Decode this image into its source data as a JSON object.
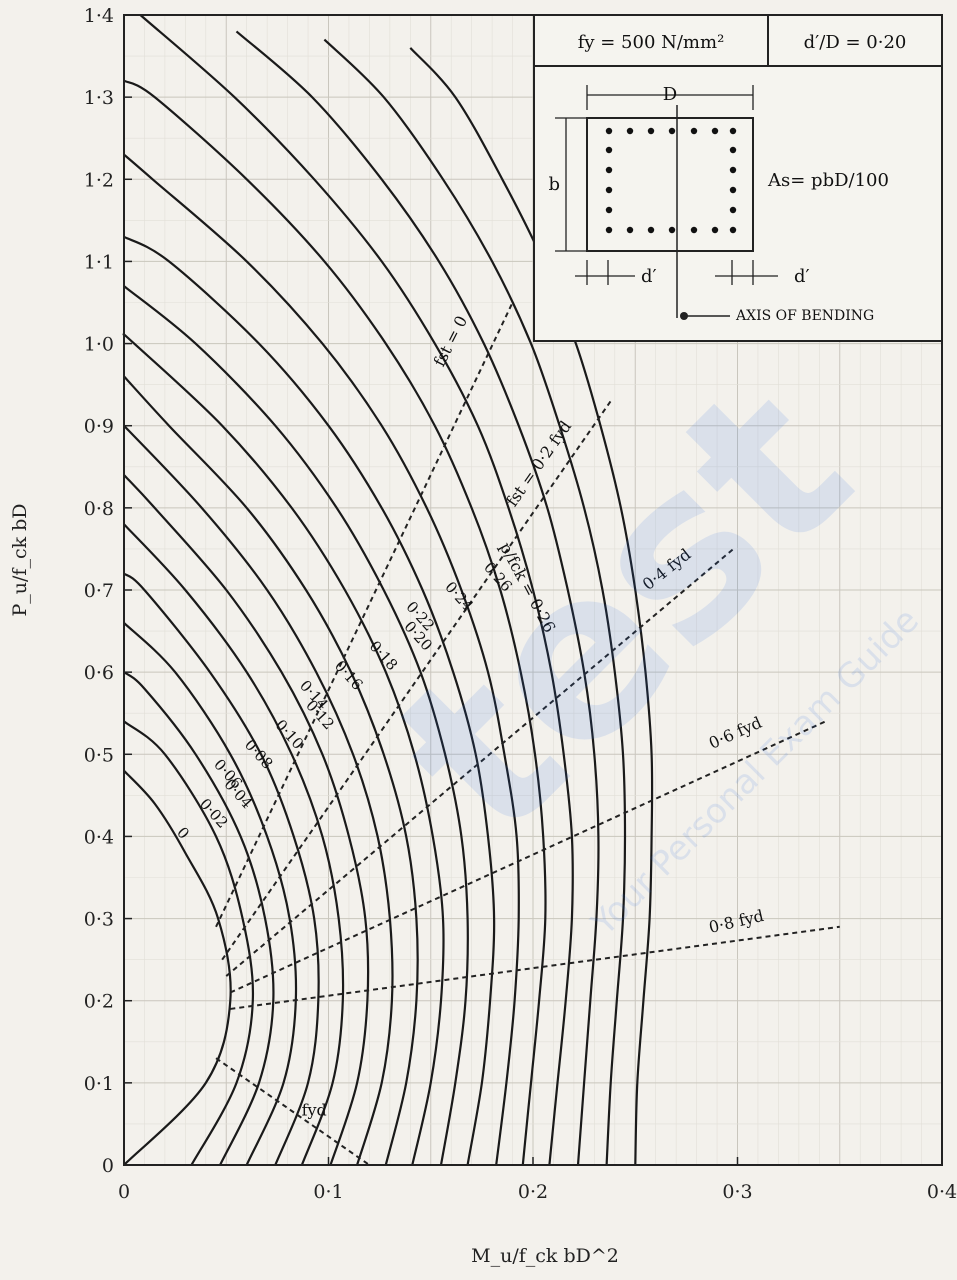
{
  "chart_data": {
    "type": "line",
    "xlabel": "M_u/f_ck bD^2",
    "ylabel": "P_u/f_ck bD",
    "xlim": [
      0,
      0.4
    ],
    "ylim": [
      0,
      1.4
    ],
    "x_ticks": [
      "0",
      "0·1",
      "0·2",
      "0·3",
      "0·4"
    ],
    "y_ticks": [
      "0",
      "0·1",
      "0·2",
      "0·3",
      "0·4",
      "0·5",
      "0·6",
      "0·7",
      "0·8",
      "0·9",
      "1·0",
      "1·1",
      "1·2",
      "1·3",
      "1·4"
    ],
    "grid": true,
    "series_param": "p/f_ck",
    "series": [
      {
        "label": "0",
        "points": [
          [
            0,
            0
          ],
          [
            0.04,
            0.1
          ],
          [
            0.052,
            0.2
          ],
          [
            0.046,
            0.3
          ],
          [
            0.03,
            0.38
          ],
          [
            0.015,
            0.44
          ],
          [
            0,
            0.48
          ]
        ]
      },
      {
        "label": "0·02",
        "points": [
          [
            0.033,
            0
          ],
          [
            0.055,
            0.1
          ],
          [
            0.063,
            0.2
          ],
          [
            0.058,
            0.3
          ],
          [
            0.045,
            0.4
          ],
          [
            0.02,
            0.5
          ],
          [
            0,
            0.54
          ]
        ]
      },
      {
        "label": "0·04",
        "points": [
          [
            0.047,
            0
          ],
          [
            0.066,
            0.1
          ],
          [
            0.073,
            0.2
          ],
          [
            0.069,
            0.3
          ],
          [
            0.057,
            0.4
          ],
          [
            0.035,
            0.5
          ],
          [
            0.01,
            0.58
          ],
          [
            0,
            0.6
          ]
        ]
      },
      {
        "label": "0·06",
        "points": [
          [
            0.06,
            0
          ],
          [
            0.078,
            0.1
          ],
          [
            0.084,
            0.2
          ],
          [
            0.081,
            0.3
          ],
          [
            0.07,
            0.4
          ],
          [
            0.052,
            0.5
          ],
          [
            0.025,
            0.6
          ],
          [
            0,
            0.66
          ]
        ]
      },
      {
        "label": "0·08",
        "points": [
          [
            0.074,
            0
          ],
          [
            0.09,
            0.1
          ],
          [
            0.095,
            0.2
          ],
          [
            0.093,
            0.3
          ],
          [
            0.083,
            0.4
          ],
          [
            0.067,
            0.5
          ],
          [
            0.042,
            0.6
          ],
          [
            0.01,
            0.7
          ],
          [
            0,
            0.72
          ]
        ]
      },
      {
        "label": "0·10",
        "points": [
          [
            0.087,
            0
          ],
          [
            0.102,
            0.1
          ],
          [
            0.107,
            0.2
          ],
          [
            0.105,
            0.3
          ],
          [
            0.097,
            0.4
          ],
          [
            0.082,
            0.5
          ],
          [
            0.06,
            0.6
          ],
          [
            0.03,
            0.7
          ],
          [
            0,
            0.78
          ]
        ]
      },
      {
        "label": "0·12",
        "points": [
          [
            0.101,
            0
          ],
          [
            0.114,
            0.1
          ],
          [
            0.119,
            0.2
          ],
          [
            0.118,
            0.3
          ],
          [
            0.11,
            0.4
          ],
          [
            0.097,
            0.5
          ],
          [
            0.077,
            0.6
          ],
          [
            0.05,
            0.7
          ],
          [
            0.015,
            0.8
          ],
          [
            0,
            0.84
          ]
        ]
      },
      {
        "label": "0·14",
        "points": [
          [
            0.114,
            0
          ],
          [
            0.126,
            0.1
          ],
          [
            0.131,
            0.2
          ],
          [
            0.13,
            0.3
          ],
          [
            0.124,
            0.4
          ],
          [
            0.112,
            0.5
          ],
          [
            0.094,
            0.6
          ],
          [
            0.07,
            0.7
          ],
          [
            0.038,
            0.8
          ],
          [
            0,
            0.9
          ]
        ]
      },
      {
        "label": "0·16",
        "points": [
          [
            0.128,
            0
          ],
          [
            0.138,
            0.1
          ],
          [
            0.143,
            0.2
          ],
          [
            0.143,
            0.3
          ],
          [
            0.138,
            0.4
          ],
          [
            0.127,
            0.5
          ],
          [
            0.111,
            0.6
          ],
          [
            0.089,
            0.7
          ],
          [
            0.06,
            0.8
          ],
          [
            0.022,
            0.9
          ],
          [
            0,
            0.96
          ]
        ]
      },
      {
        "label": "0·18",
        "points": [
          [
            0.141,
            0
          ],
          [
            0.15,
            0.1
          ],
          [
            0.155,
            0.2
          ],
          [
            0.156,
            0.3
          ],
          [
            0.151,
            0.4
          ],
          [
            0.142,
            0.5
          ],
          [
            0.128,
            0.6
          ],
          [
            0.108,
            0.7
          ],
          [
            0.082,
            0.8
          ],
          [
            0.048,
            0.9
          ],
          [
            0.005,
            1.0
          ],
          [
            0,
            1.01
          ]
        ]
      },
      {
        "label": "0·20",
        "points": [
          [
            0.155,
            0
          ],
          [
            0.162,
            0.1
          ],
          [
            0.167,
            0.2
          ],
          [
            0.168,
            0.3
          ],
          [
            0.165,
            0.4
          ],
          [
            0.157,
            0.5
          ],
          [
            0.145,
            0.6
          ],
          [
            0.127,
            0.7
          ],
          [
            0.104,
            0.8
          ],
          [
            0.074,
            0.9
          ],
          [
            0.035,
            1.0
          ],
          [
            0,
            1.07
          ]
        ]
      },
      {
        "label": "0·22",
        "points": [
          [
            0.168,
            0
          ],
          [
            0.175,
            0.1
          ],
          [
            0.179,
            0.2
          ],
          [
            0.181,
            0.3
          ],
          [
            0.178,
            0.4
          ],
          [
            0.172,
            0.5
          ],
          [
            0.161,
            0.6
          ],
          [
            0.146,
            0.7
          ],
          [
            0.126,
            0.8
          ],
          [
            0.1,
            0.9
          ],
          [
            0.066,
            1.0
          ],
          [
            0.022,
            1.1
          ],
          [
            0,
            1.13
          ]
        ]
      },
      {
        "label": "0·24",
        "points": [
          [
            0.182,
            0
          ],
          [
            0.187,
            0.1
          ],
          [
            0.191,
            0.2
          ],
          [
            0.193,
            0.3
          ],
          [
            0.192,
            0.4
          ],
          [
            0.186,
            0.5
          ],
          [
            0.178,
            0.6
          ],
          [
            0.165,
            0.7
          ],
          [
            0.148,
            0.8
          ],
          [
            0.126,
            0.9
          ],
          [
            0.097,
            1.0
          ],
          [
            0.06,
            1.1
          ],
          [
            0.014,
            1.2
          ],
          [
            0,
            1.23
          ]
        ]
      },
      {
        "label": "0·26",
        "points": [
          [
            0.195,
            0
          ],
          [
            0.199,
            0.1
          ],
          [
            0.203,
            0.2
          ],
          [
            0.206,
            0.3
          ],
          [
            0.205,
            0.4
          ],
          [
            0.201,
            0.5
          ],
          [
            0.194,
            0.6
          ],
          [
            0.184,
            0.7
          ],
          [
            0.17,
            0.8
          ],
          [
            0.152,
            0.9
          ],
          [
            0.128,
            1.0
          ],
          [
            0.098,
            1.1
          ],
          [
            0.06,
            1.2
          ],
          [
            0.015,
            1.3
          ],
          [
            0,
            1.32
          ]
        ]
      },
      {
        "label": "",
        "points": [
          [
            0.208,
            0
          ],
          [
            0.212,
            0.1
          ],
          [
            0.216,
            0.2
          ],
          [
            0.219,
            0.3
          ],
          [
            0.219,
            0.4
          ],
          [
            0.215,
            0.5
          ],
          [
            0.209,
            0.6
          ],
          [
            0.2,
            0.7
          ],
          [
            0.188,
            0.8
          ],
          [
            0.173,
            0.9
          ],
          [
            0.152,
            1.0
          ],
          [
            0.126,
            1.1
          ],
          [
            0.093,
            1.2
          ],
          [
            0.054,
            1.3
          ],
          [
            0.008,
            1.4
          ]
        ]
      },
      {
        "label": "",
        "points": [
          [
            0.222,
            0
          ],
          [
            0.225,
            0.1
          ],
          [
            0.228,
            0.2
          ],
          [
            0.231,
            0.3
          ],
          [
            0.232,
            0.4
          ],
          [
            0.23,
            0.5
          ],
          [
            0.225,
            0.6
          ],
          [
            0.217,
            0.7
          ],
          [
            0.207,
            0.8
          ],
          [
            0.193,
            0.9
          ],
          [
            0.176,
            1.0
          ],
          [
            0.154,
            1.1
          ],
          [
            0.126,
            1.2
          ],
          [
            0.092,
            1.3
          ],
          [
            0.055,
            1.38
          ]
        ]
      },
      {
        "label": "",
        "points": [
          [
            0.236,
            0
          ],
          [
            0.238,
            0.1
          ],
          [
            0.241,
            0.2
          ],
          [
            0.244,
            0.3
          ],
          [
            0.245,
            0.4
          ],
          [
            0.244,
            0.5
          ],
          [
            0.24,
            0.6
          ],
          [
            0.234,
            0.7
          ],
          [
            0.225,
            0.8
          ],
          [
            0.213,
            0.9
          ],
          [
            0.199,
            1.0
          ],
          [
            0.18,
            1.1
          ],
          [
            0.156,
            1.2
          ],
          [
            0.127,
            1.3
          ],
          [
            0.098,
            1.37
          ]
        ]
      },
      {
        "label": "",
        "points": [
          [
            0.25,
            0
          ],
          [
            0.251,
            0.1
          ],
          [
            0.254,
            0.2
          ],
          [
            0.257,
            0.3
          ],
          [
            0.258,
            0.4
          ],
          [
            0.258,
            0.5
          ],
          [
            0.255,
            0.6
          ],
          [
            0.25,
            0.7
          ],
          [
            0.243,
            0.8
          ],
          [
            0.233,
            0.9
          ],
          [
            0.221,
            1.0
          ],
          [
            0.205,
            1.1
          ],
          [
            0.185,
            1.2
          ],
          [
            0.162,
            1.3
          ],
          [
            0.14,
            1.36
          ]
        ]
      }
    ],
    "strain_lines": [
      {
        "label": "f_st = 0",
        "points": [
          [
            0.045,
            0.29
          ],
          [
            0.19,
            1.05
          ]
        ]
      },
      {
        "label": "f_st = 0·2 f_yd",
        "points": [
          [
            0.048,
            0.25
          ],
          [
            0.238,
            0.93
          ]
        ]
      },
      {
        "label": "0·4 f_yd",
        "points": [
          [
            0.05,
            0.23
          ],
          [
            0.298,
            0.75
          ]
        ]
      },
      {
        "label": "0·6 f_yd",
        "points": [
          [
            0.052,
            0.21
          ],
          [
            0.343,
            0.54
          ]
        ]
      },
      {
        "label": "0·8 f_yd",
        "points": [
          [
            0.052,
            0.19
          ],
          [
            0.35,
            0.29
          ]
        ]
      },
      {
        "label": "f_yd",
        "points": [
          [
            0.045,
            0.13
          ],
          [
            0.12,
            0.0
          ]
        ]
      }
    ],
    "curve_label_positions": "along curves at lower-left",
    "line_labels_text": [
      "fst = 0",
      "fst = 0·2 fyd",
      "0·4 fyd",
      "0·6 fyd",
      "0·8 fyd",
      "fyd",
      "p/fck = 0·26"
    ],
    "inset": {
      "fy": "fy = 500 N/mm²",
      "ratio": "d′/D = 0·20",
      "dim_D": "D",
      "dim_b": "b",
      "dim_d": "d′",
      "area": "As= pbD/100",
      "axis": "AXIS OF BENDING"
    }
  },
  "watermark": {
    "big": "test",
    "line": "Your Personal Exam Guide"
  }
}
